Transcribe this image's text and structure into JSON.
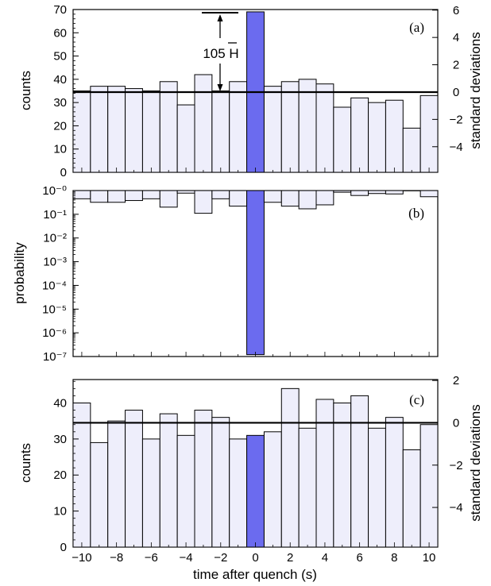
{
  "figure": {
    "xlabel": "time after quench (s)",
    "x_ticks": [
      "−10",
      "−8",
      "−6",
      "−4",
      "−2",
      "0",
      "2",
      "4",
      "6",
      "8",
      "10"
    ]
  },
  "colors": {
    "bar_fill": "#eeeefb",
    "highlight_fill": "#6b6bef",
    "stroke": "#000000"
  },
  "chart_data": [
    {
      "type": "bar",
      "panel": "(a)",
      "ylabel": "counts",
      "ylabel_right": "standard deviations",
      "x_bin_starts": [
        -10,
        -9,
        -8,
        -7,
        -6,
        -5,
        -4,
        -3,
        -2,
        -1,
        0,
        1,
        2,
        3,
        4,
        5,
        6,
        7,
        8,
        9,
        10
      ],
      "values": [
        35,
        37,
        37,
        36,
        35,
        39,
        29,
        42,
        35,
        39,
        69,
        37,
        39,
        40,
        38,
        28,
        32,
        30,
        31,
        19,
        33
      ],
      "highlight_index": 10,
      "mean_line": 34.5,
      "ylim": [
        0,
        70
      ],
      "y_ticks": [
        0,
        10,
        20,
        30,
        40,
        50,
        60,
        70
      ],
      "right_ticks": [
        6,
        4,
        2,
        0,
        -2,
        -4
      ],
      "annotation": "105 H"
    },
    {
      "type": "bar",
      "panel": "(b)",
      "ylabel": "probability",
      "yscale": "log",
      "ylim": [
        1e-07,
        1
      ],
      "y_ticks": [
        "10⁻⁰",
        "10⁻¹",
        "10⁻²",
        "10⁻³",
        "10⁻⁴",
        "10⁻⁵",
        "10⁻⁶",
        "10⁻⁷"
      ],
      "x_bin_starts": [
        -10,
        -9,
        -8,
        -7,
        -6,
        -5,
        -4,
        -3,
        -2,
        -1,
        0,
        1,
        2,
        3,
        4,
        5,
        6,
        7,
        8,
        9,
        10
      ],
      "values": [
        0.45,
        0.32,
        0.32,
        0.38,
        0.45,
        0.2,
        0.78,
        0.11,
        0.45,
        0.22,
        1.2e-07,
        0.32,
        0.22,
        0.17,
        0.25,
        0.85,
        0.62,
        0.75,
        0.72,
        0.98,
        0.55
      ],
      "highlight_index": 10
    },
    {
      "type": "bar",
      "panel": "(c)",
      "ylabel": "counts",
      "ylabel_right": "standard deviations",
      "x_bin_starts": [
        -10,
        -9,
        -8,
        -7,
        -6,
        -5,
        -4,
        -3,
        -2,
        -1,
        0,
        1,
        2,
        3,
        4,
        5,
        6,
        7,
        8,
        9,
        10
      ],
      "values": [
        40,
        29,
        35,
        38,
        30,
        37,
        31,
        38,
        36,
        30,
        31,
        32,
        44,
        33,
        41,
        40,
        42,
        33,
        36,
        27,
        34
      ],
      "highlight_index": 10,
      "mean_line": 34.5,
      "ylim": [
        0,
        46.5
      ],
      "y_ticks": [
        0,
        10,
        20,
        30,
        40
      ],
      "right_ticks": [
        2,
        0,
        -2,
        -4
      ]
    }
  ]
}
